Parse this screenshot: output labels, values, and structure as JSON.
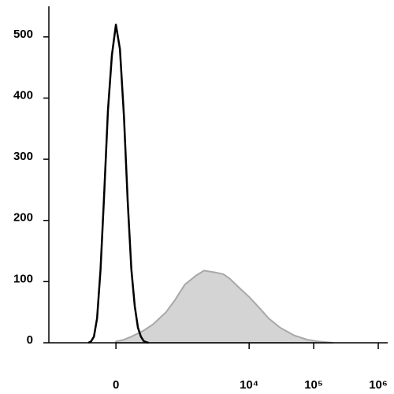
{
  "chart_data": {
    "type": "line",
    "x_scale": "biexponential",
    "xlim": [
      -938,
      1400000
    ],
    "xticks": [
      {
        "value": 0,
        "label": "0"
      },
      {
        "value": 10000,
        "label": "10⁴"
      },
      {
        "value": 100000,
        "label": "10⁵"
      },
      {
        "value": 1000000,
        "label": "10⁶"
      }
    ],
    "ylim": [
      0,
      550
    ],
    "yticks": [
      0,
      100,
      200,
      300,
      400,
      500
    ],
    "series": [
      {
        "color": "#a8a8a8",
        "fill": "#d4d4d4",
        "x": [
          0,
          50,
          100,
          200,
          300,
          500,
          700,
          1000,
          1500,
          2000,
          3000,
          4000,
          5000,
          7000,
          10000,
          15000,
          20000,
          30000,
          50000,
          80000,
          120000,
          200000
        ],
        "values": [
          2,
          5,
          10,
          20,
          30,
          50,
          70,
          95,
          110,
          118,
          115,
          112,
          105,
          90,
          75,
          55,
          40,
          25,
          12,
          5,
          2,
          0
        ]
      },
      {
        "color": "#000000",
        "fill": null,
        "x": [
          -200,
          -175,
          -150,
          -125,
          -100,
          -75,
          -50,
          -25,
          0,
          25,
          50,
          75,
          100,
          125,
          150,
          175,
          200,
          225,
          250
        ],
        "values": [
          0,
          2,
          10,
          40,
          120,
          240,
          380,
          470,
          520,
          480,
          370,
          230,
          120,
          60,
          25,
          10,
          3,
          1,
          0
        ]
      }
    ]
  }
}
